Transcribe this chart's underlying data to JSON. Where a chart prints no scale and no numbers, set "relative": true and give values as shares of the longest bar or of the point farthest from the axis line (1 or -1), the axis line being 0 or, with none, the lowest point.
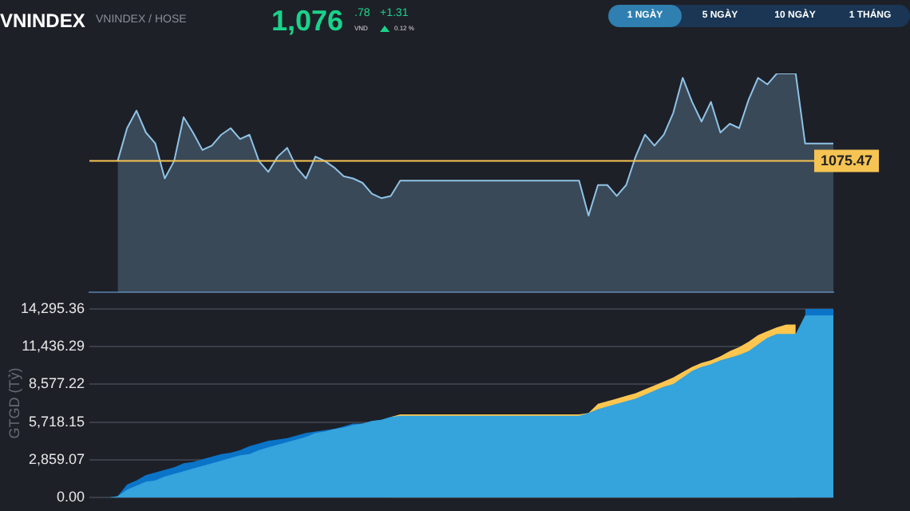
{
  "chart_data": [
    {
      "type": "other",
      "title": "VNINDEX",
      "subtitle": "VNINDEX / HOSE",
      "annotations": [
        "1,076",
        ".78",
        "VND",
        "+1.31",
        "0.12 %",
        "1 NGÀY",
        "5 NGÀY",
        "10 NGÀY",
        "1 THÁNG"
      ]
    },
    {
      "type": "area",
      "relative": true,
      "grid": false,
      "legend": false,
      "tick_labels": false,
      "categories": [
        null,
        null,
        null,
        null,
        null,
        null,
        null,
        null,
        null,
        null,
        null,
        null,
        null,
        null,
        null,
        null,
        null,
        null,
        null,
        null,
        null,
        null,
        null,
        null,
        null,
        null,
        null,
        null,
        null,
        null,
        null,
        null,
        null,
        null,
        null,
        null,
        null,
        null,
        null,
        null,
        null,
        null,
        null,
        null,
        null,
        null,
        null,
        null,
        null,
        null,
        null,
        null,
        null,
        null,
        null,
        null,
        null,
        null,
        null,
        null,
        null,
        null,
        null,
        null,
        null,
        null,
        null,
        null,
        null,
        null,
        null,
        null,
        null,
        null,
        null,
        null,
        null,
        null,
        null,
        null
      ],
      "series": [
        {
          "color": "#8fc3e6",
          "values": [
            null,
            null,
            null,
            0.6,
            0.75,
            0.83,
            0.73,
            0.68,
            0.52,
            0.6,
            0.8,
            0.73,
            0.65,
            0.67,
            0.72,
            0.75,
            0.7,
            0.72,
            0.6,
            0.55,
            0.62,
            0.66,
            0.57,
            0.52,
            0.62,
            0.6,
            0.57,
            0.53,
            0.52,
            0.5,
            0.45,
            0.43,
            0.44,
            0.51,
            0.51,
            0.51,
            0.51,
            0.51,
            0.51,
            0.51,
            0.51,
            0.51,
            0.51,
            0.51,
            0.51,
            0.51,
            0.51,
            0.51,
            0.51,
            0.51,
            0.51,
            0.51,
            0.51,
            0.35,
            0.49,
            0.49,
            0.44,
            0.49,
            0.62,
            0.72,
            0.67,
            0.72,
            0.82,
            0.98,
            0.87,
            0.78,
            0.87,
            0.73,
            0.77,
            0.75,
            0.88,
            0.98,
            0.95,
            1,
            1,
            1,
            0.68,
            0.68,
            0.68,
            0.68
          ]
        }
      ],
      "annotations": [
        "1075.47"
      ],
      "ref_lines": [
        {
          "axis": "y",
          "value": 0.6,
          "color": "#f6c453"
        }
      ]
    },
    {
      "type": "area",
      "ylabel": "GTGD (Tỷ)",
      "grid": "y",
      "legend": false,
      "tick_labels": "y",
      "ylim": [
        0,
        14295.36
      ],
      "yticks": [
        {
          "value": 0,
          "label": "0.00"
        },
        {
          "value": 2859.07,
          "label": "2,859.07"
        },
        {
          "value": 5718.15,
          "label": "5,718.15"
        },
        {
          "value": 8577.22,
          "label": "8,577.22"
        },
        {
          "value": 11436.29,
          "label": "11,436.29"
        },
        {
          "value": 14295.36,
          "label": "14,295.36"
        }
      ],
      "categories": [
        null,
        null,
        null,
        null,
        null,
        null,
        null,
        null,
        null,
        null,
        null,
        null,
        null,
        null,
        null,
        null,
        null,
        null,
        null,
        null,
        null,
        null,
        null,
        null,
        null,
        null,
        null,
        null,
        null,
        null,
        null,
        null,
        null,
        null,
        null,
        null,
        null,
        null,
        null,
        null,
        null,
        null,
        null,
        null,
        null,
        null,
        null,
        null,
        null,
        null,
        null,
        null,
        null,
        null,
        null,
        null,
        null,
        null,
        null,
        null,
        null,
        null,
        null,
        null,
        null,
        null,
        null,
        null,
        null,
        null,
        null,
        null,
        null,
        null,
        null,
        null,
        null,
        null,
        null,
        null
      ],
      "series": [
        {
          "color": "#35a3dc",
          "values": [
            0,
            0,
            0,
            100,
            600,
            900,
            1200,
            1300,
            1600,
            1800,
            2000,
            2200,
            2400,
            2600,
            2800,
            3000,
            3200,
            3300,
            3600,
            3800,
            4000,
            4200,
            4400,
            4600,
            4900,
            5000,
            5200,
            5300,
            5500,
            5600,
            5800,
            5900,
            6100,
            6200,
            6200,
            6200,
            6200,
            6200,
            6200,
            6200,
            6200,
            6200,
            6200,
            6200,
            6200,
            6200,
            6200,
            6200,
            6200,
            6200,
            6200,
            6200,
            6200,
            6400,
            6700,
            6900,
            7100,
            7300,
            7500,
            7800,
            8100,
            8400,
            8600,
            9100,
            9600,
            9900,
            10100,
            10400,
            10600,
            10800,
            11100,
            11600,
            12100,
            12400,
            12400,
            12400,
            13800,
            13800,
            13800,
            13800
          ]
        },
        {
          "color": "#0a74c9",
          "values": [
            0,
            0,
            0,
            100,
            1000,
            1300,
            1700,
            1900,
            2100,
            2300,
            2600,
            2700,
            2900,
            3100,
            3300,
            3400,
            3600,
            3900,
            4100,
            4300,
            4400,
            4500,
            4700,
            4900,
            5000,
            5100,
            5200,
            5400,
            5600,
            5600,
            5800,
            5900,
            6100,
            null,
            null,
            null,
            null,
            null,
            null,
            null,
            null,
            null,
            null,
            null,
            null,
            null,
            null,
            null,
            null,
            null,
            null,
            null,
            null,
            null,
            null,
            null,
            null,
            null,
            null,
            null,
            null,
            null,
            null,
            null,
            null,
            null,
            null,
            null,
            null,
            null,
            null,
            null,
            null,
            null,
            null,
            null,
            14295.36,
            14295.36,
            14295.36,
            14295.36
          ]
        },
        {
          "color": "#fec64f",
          "values": [
            null,
            null,
            null,
            null,
            null,
            null,
            null,
            null,
            null,
            null,
            null,
            null,
            null,
            null,
            null,
            null,
            null,
            null,
            null,
            null,
            null,
            null,
            null,
            null,
            null,
            null,
            null,
            null,
            null,
            null,
            null,
            null,
            6100,
            6300,
            6300,
            6300,
            6300,
            6300,
            6300,
            6300,
            6300,
            6300,
            6300,
            6300,
            6300,
            6300,
            6300,
            6300,
            6300,
            6300,
            6300,
            6300,
            6300,
            6400,
            7100,
            7300,
            7500,
            7700,
            7900,
            8200,
            8500,
            8800,
            9100,
            9500,
            9900,
            10200,
            10400,
            10700,
            11100,
            11400,
            11800,
            12300,
            12600,
            12900,
            13100,
            13100,
            null,
            null,
            null,
            null
          ]
        }
      ]
    }
  ]
}
